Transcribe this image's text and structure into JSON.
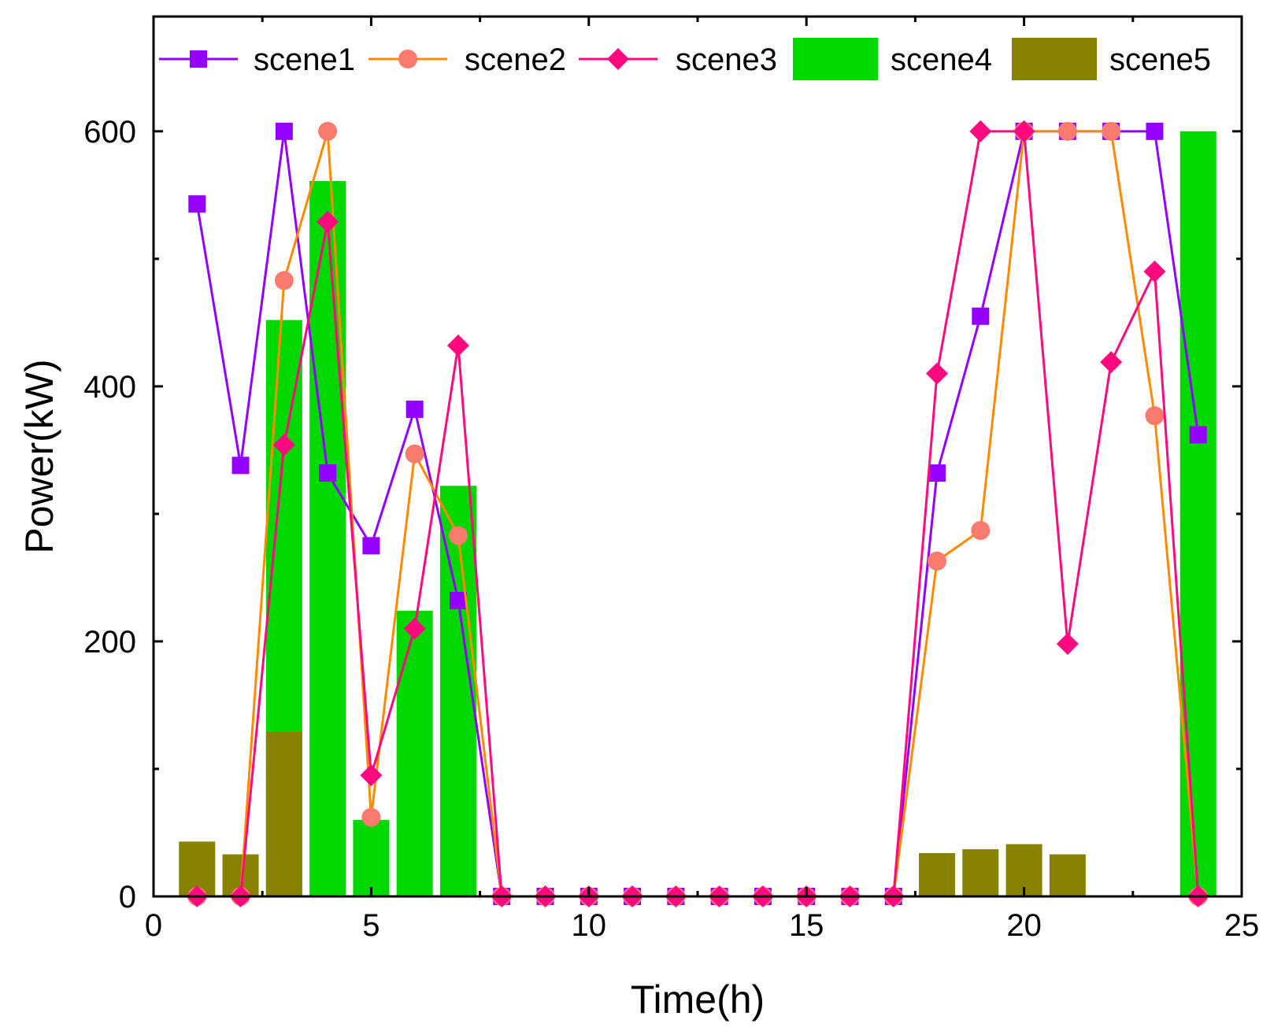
{
  "chart_data": {
    "type": "bar+line",
    "title": "",
    "xlabel": "Time(h)",
    "ylabel": "Power(kW)",
    "xlim": [
      0,
      25
    ],
    "ylim": [
      0,
      690
    ],
    "xticks": [
      0,
      5,
      10,
      15,
      20,
      25
    ],
    "yticks": [
      0,
      200,
      400,
      600
    ],
    "x": [
      1,
      2,
      3,
      4,
      5,
      6,
      7,
      8,
      9,
      10,
      11,
      12,
      13,
      14,
      15,
      16,
      17,
      18,
      19,
      20,
      21,
      22,
      23,
      24
    ],
    "line_series": [
      {
        "name": "scene1",
        "color": "#9400FF",
        "marker": "square",
        "values": [
          543,
          338,
          600,
          332,
          275,
          382,
          232,
          0,
          0,
          0,
          0,
          0,
          0,
          0,
          0,
          0,
          0,
          332,
          455,
          600,
          600,
          600,
          600,
          362
        ]
      },
      {
        "name": "scene2",
        "color": "#FF8A00",
        "marker_color": "#F87B6E",
        "marker": "circle",
        "values": [
          0,
          0,
          483,
          600,
          62,
          347,
          283,
          0,
          0,
          0,
          0,
          0,
          0,
          0,
          0,
          0,
          0,
          263,
          287,
          600,
          600,
          600,
          377,
          0
        ]
      },
      {
        "name": "scene3",
        "color": "#FF0A7E",
        "marker": "diamond",
        "values": [
          0,
          0,
          354,
          529,
          95,
          210,
          432,
          0,
          0,
          0,
          0,
          0,
          0,
          0,
          0,
          0,
          0,
          410,
          600,
          600,
          198,
          419,
          490,
          0
        ]
      }
    ],
    "bar_series": [
      {
        "name": "scene4",
        "color": "#00D800",
        "values": [
          0,
          0,
          452,
          561,
          60,
          224,
          322,
          0,
          0,
          0,
          0,
          0,
          0,
          0,
          0,
          0,
          0,
          0,
          0,
          0,
          0,
          0,
          0,
          600
        ]
      },
      {
        "name": "scene5",
        "color": "#878200",
        "values": [
          43,
          33,
          129,
          0,
          0,
          0,
          0,
          0,
          0,
          0,
          0,
          0,
          0,
          0,
          0,
          0,
          0,
          34,
          37,
          41,
          33,
          0,
          0,
          0
        ]
      }
    ],
    "legend": [
      "scene1",
      "scene2",
      "scene3",
      "scene4",
      "scene5"
    ],
    "legend_position": "top",
    "grid": false
  }
}
